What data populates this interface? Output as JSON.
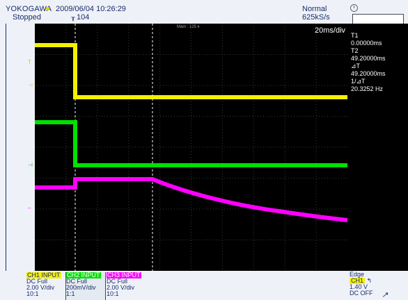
{
  "header": {
    "brand": "YOKOGAWA",
    "datetime": "2009/06/04 10:26:29",
    "state": "Stopped",
    "record_number": "104",
    "acquisition_mode": "Normal",
    "sample_rate": "625kS/s"
  },
  "display": {
    "zoom_label": "Main : 125 k",
    "time_div": "20ms/div"
  },
  "cursors": {
    "t1_label": "T1",
    "t1_value": "0.00000ms",
    "t2_label": "T2",
    "t2_value": "49.20000ms",
    "dt_label": "⊿T",
    "dt_value": "49.20000ms",
    "inv_dt_label": "1/⊿T",
    "inv_dt_value": "20.3252 Hz"
  },
  "channels": [
    {
      "name": "CH1 INPUT",
      "coupling": "DC Full",
      "scale": "2.00 V/div",
      "probe": "10:1",
      "color": "#f4f000"
    },
    {
      "name": "CH2 INPUT",
      "coupling": "DC Full",
      "scale": "200mV/div",
      "probe": "1:1",
      "color": "#00e000"
    },
    {
      "name": "CH3 INPUT",
      "coupling": "DC Full",
      "scale": "2.00 V/div",
      "probe": "10:1",
      "color": "#ff00ff"
    }
  ],
  "trigger": {
    "type": "Edge",
    "source": "CH1",
    "level": "1.40 V",
    "filter": "DC OFF"
  },
  "colors": {
    "ch1": "#f4f000",
    "ch2": "#00e000",
    "ch3": "#ff00ff",
    "screen_bg": "#000000"
  }
}
